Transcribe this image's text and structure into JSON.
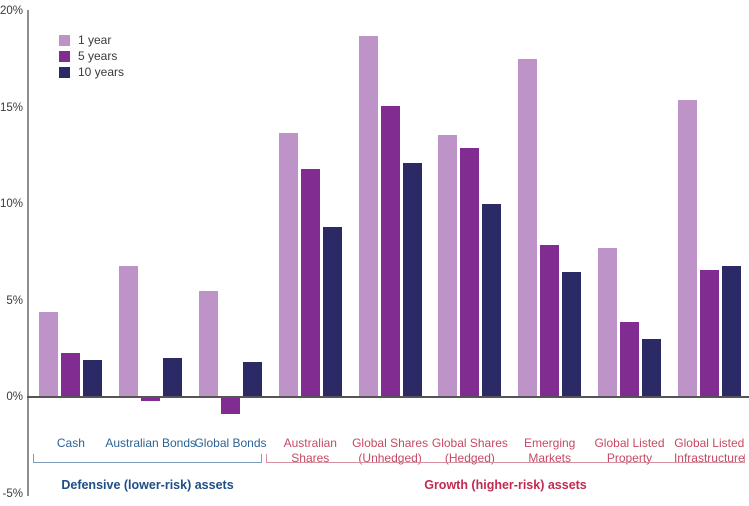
{
  "y_axis": {
    "ticks": [
      {
        "label": "20%",
        "value": 20
      },
      {
        "label": "15%",
        "value": 15
      },
      {
        "label": "10%",
        "value": 10
      },
      {
        "label": "5%",
        "value": 5
      },
      {
        "label": "0%",
        "value": 0
      },
      {
        "label": "-5%",
        "value": -5
      }
    ]
  },
  "category_colors": {
    "defensive": "#2d6295",
    "growth": "#c64a63"
  },
  "chart_data": {
    "type": "bar",
    "title": "",
    "xlabel": "",
    "ylabel": "",
    "unit": "%",
    "ylim": [
      -5,
      20
    ],
    "grid": false,
    "legend_position": "top-left",
    "categories": [
      "Cash",
      "Australian Bonds",
      "Global Bonds",
      "Australian Shares",
      "Global Shares (Unhedged)",
      "Global Shares (Hedged)",
      "Emerging Markets",
      "Global Listed Property",
      "Global Listed Infrastructure"
    ],
    "category_groups": [
      "defensive",
      "defensive",
      "defensive",
      "growth",
      "growth",
      "growth",
      "growth",
      "growth",
      "growth"
    ],
    "series": [
      {
        "name": "1 year",
        "color": "#bd93c8",
        "values": [
          4.4,
          6.8,
          5.5,
          13.7,
          18.7,
          13.6,
          17.5,
          7.7,
          15.4
        ]
      },
      {
        "name": "5 years",
        "color": "#812c90",
        "values": [
          2.3,
          -0.2,
          -0.9,
          11.8,
          15.1,
          12.9,
          7.9,
          3.9,
          6.6
        ]
      },
      {
        "name": "10 years",
        "color": "#2b2a66",
        "values": [
          1.9,
          2.0,
          1.8,
          8.8,
          12.1,
          10.0,
          6.5,
          3.0,
          6.8
        ]
      }
    ],
    "axis_groups": [
      {
        "label": "Defensive (lower-risk) assets",
        "color": "#1d4e86",
        "bracket_color": "#7d9cbe",
        "span": [
          0,
          2
        ]
      },
      {
        "label": "Growth (higher-risk) assets",
        "color": "#c12b52",
        "bracket_color": "#d791a0",
        "span": [
          3,
          8
        ]
      }
    ]
  }
}
